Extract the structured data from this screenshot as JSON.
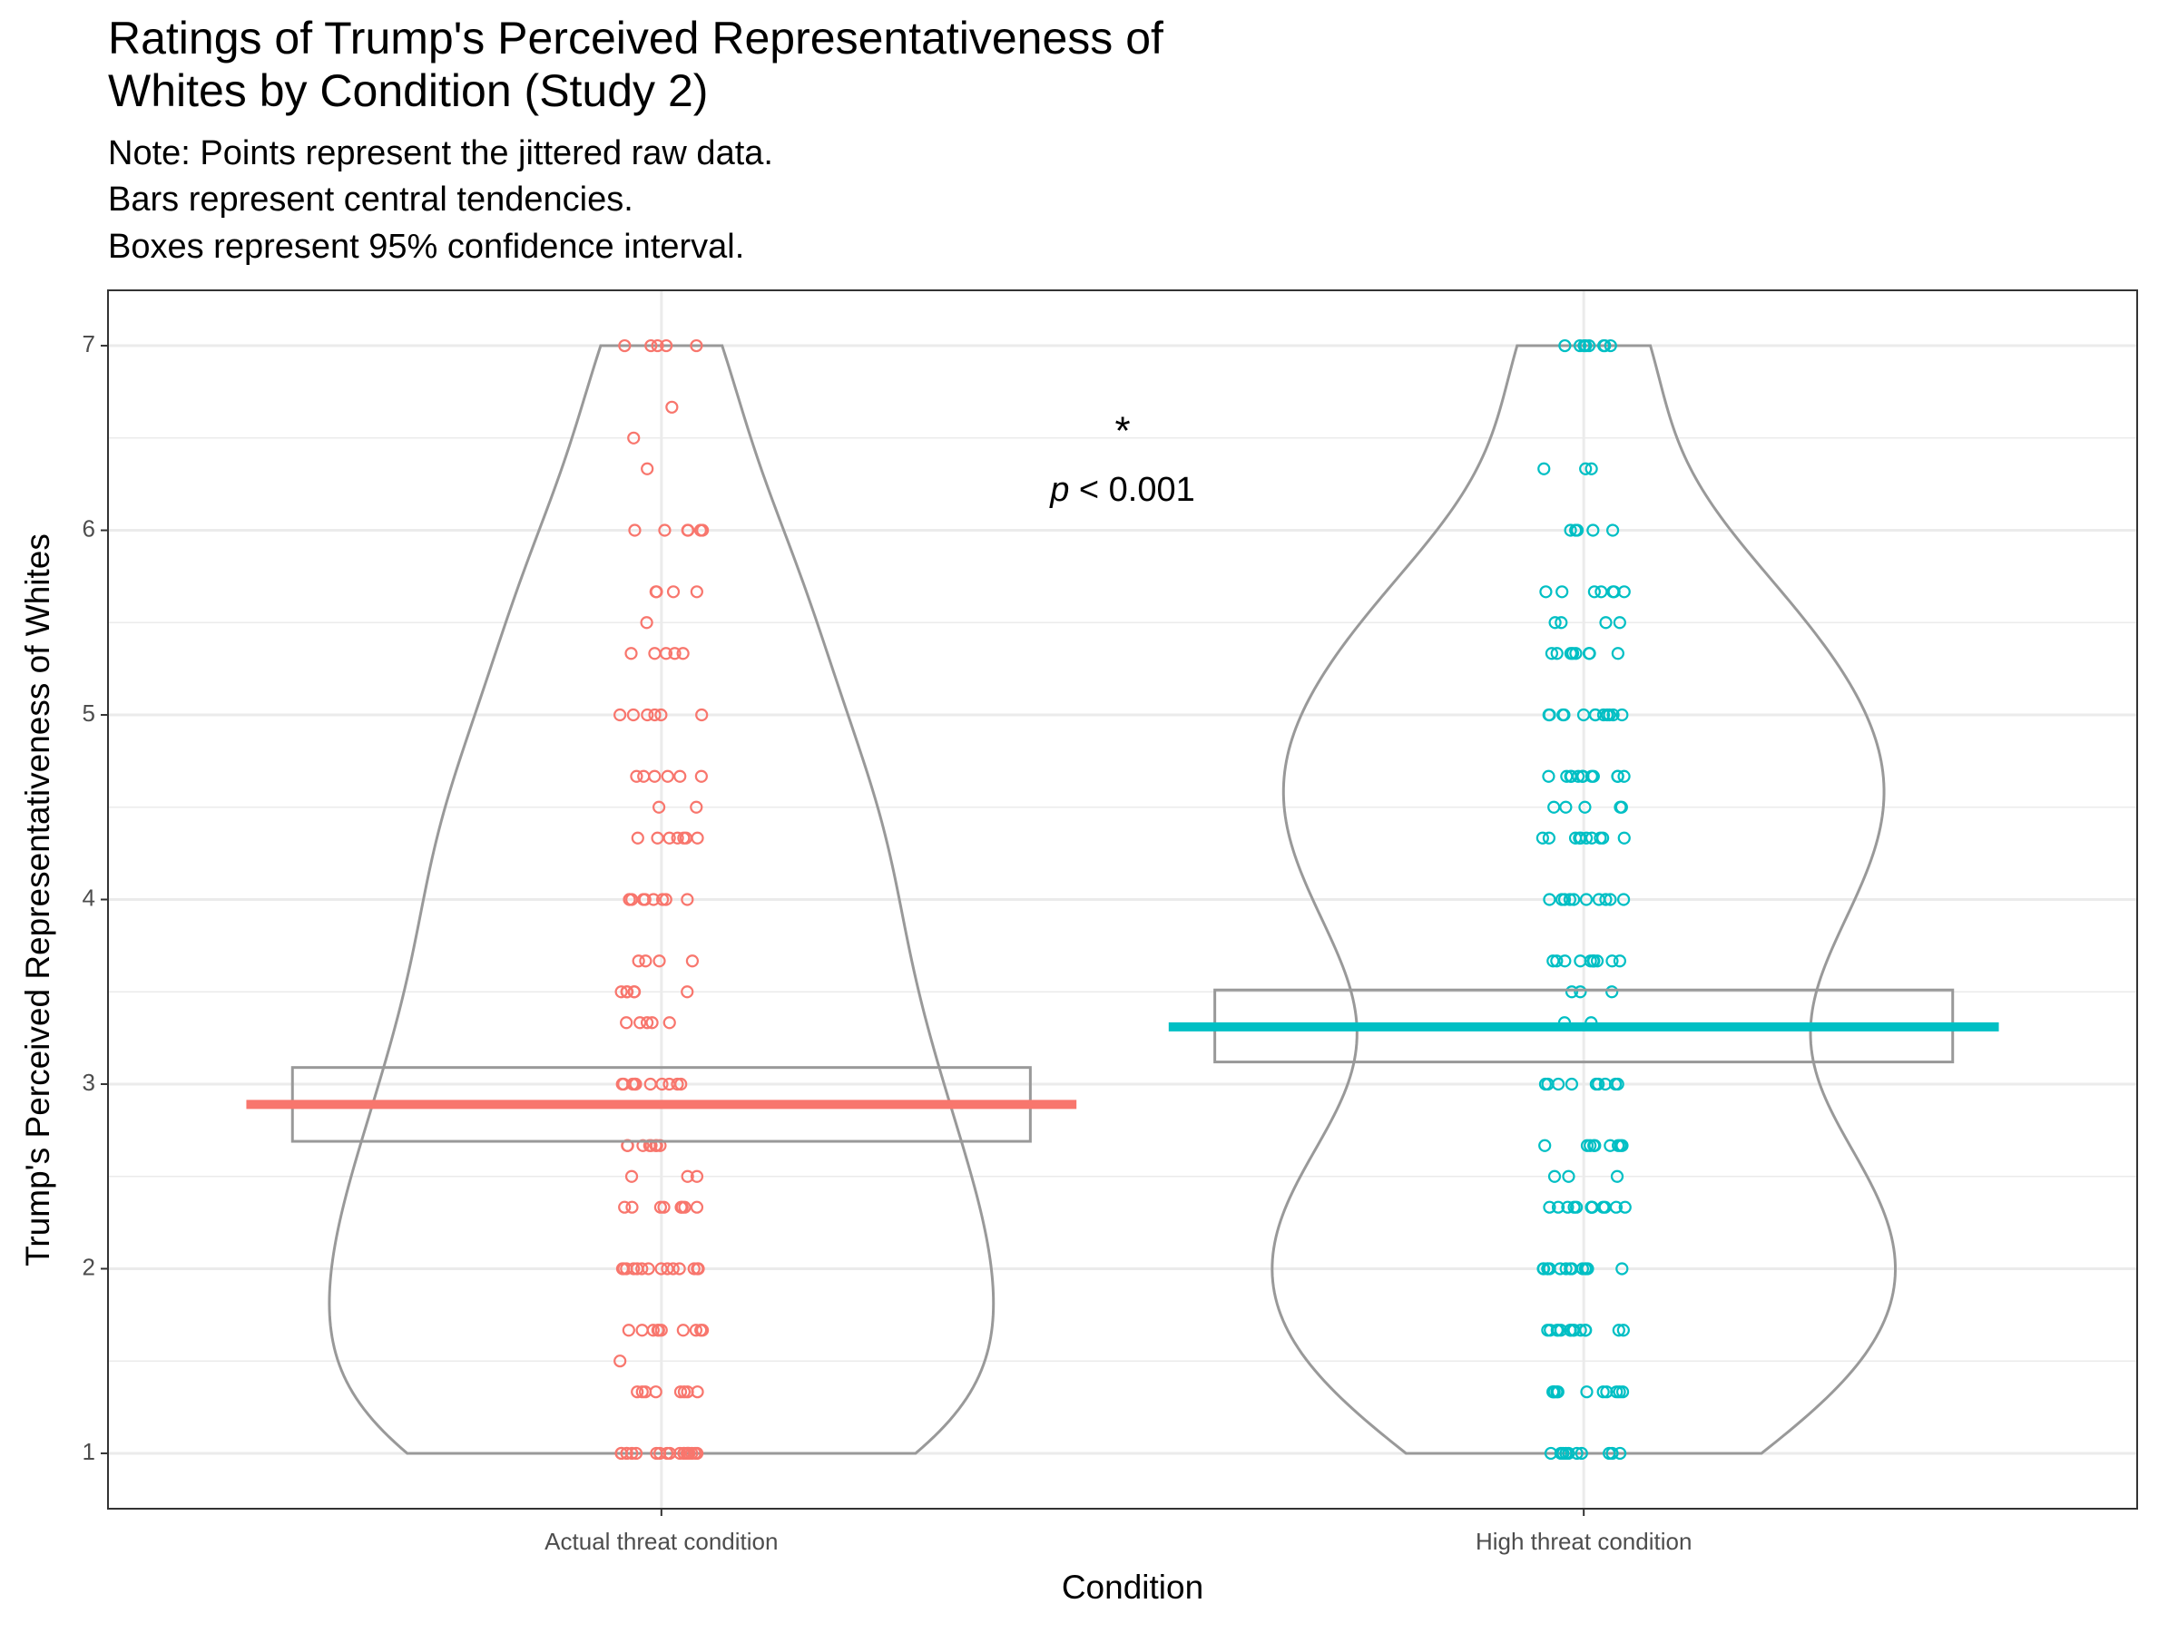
{
  "chart_data": {
    "type": "violin",
    "title": [
      "Ratings of Trump's Perceived Representativeness of",
      "Whites by Condition (Study 2)"
    ],
    "subtitle": [
      "Note: Points represent the jittered raw data.",
      "Bars represent central tendencies.",
      "Boxes represent 95% confidence interval."
    ],
    "x_label": "Condition",
    "y_label": "Trump's Perceived Representativeness of Whites",
    "annotation": {
      "star": "*",
      "p_symbol": "p",
      "p_text": "< 0.001"
    },
    "ylim": [
      0.7,
      7.3
    ],
    "yticks": [
      1,
      2,
      3,
      4,
      5,
      6,
      7
    ],
    "grid": true,
    "series": [
      {
        "name": "Actual threat condition",
        "color": "#F8766D",
        "mean": 2.89,
        "ci": [
          2.69,
          3.09
        ],
        "values": [
          7,
          7,
          7,
          7,
          7,
          6.667,
          6.5,
          6.333,
          6,
          6,
          6,
          6,
          6,
          6,
          5.667,
          5.667,
          5.667,
          5.667,
          5.5,
          5.333,
          5.333,
          5.333,
          5.333,
          5.333,
          5,
          5,
          5,
          5,
          5,
          5,
          4.667,
          4.667,
          4.667,
          4.667,
          4.667,
          4.667,
          4.5,
          4.5,
          4.333,
          4.333,
          4.333,
          4.333,
          4.333,
          4.333,
          4.333,
          4,
          4,
          4,
          4,
          4,
          4,
          4,
          4,
          4,
          3.667,
          3.667,
          3.667,
          3.667,
          3.5,
          3.5,
          3.5,
          3.5,
          3.5,
          3.5,
          3.333,
          3.333,
          3.333,
          3.333,
          3.333,
          3,
          3,
          3,
          3,
          3,
          3,
          3,
          3,
          3,
          3,
          3,
          2.667,
          2.667,
          2.667,
          2.667,
          2.667,
          2.667,
          2.667,
          2.667,
          2.5,
          2.5,
          2.5,
          2.333,
          2.333,
          2.333,
          2.333,
          2.333,
          2.333,
          2.333,
          2.333,
          2,
          2,
          2,
          2,
          2,
          2,
          2,
          2,
          2,
          2,
          2,
          2,
          2,
          2,
          1.667,
          1.667,
          1.667,
          1.667,
          1.667,
          1.667,
          1.667,
          1.667,
          1.667,
          1.667,
          1.5,
          1.333,
          1.333,
          1.333,
          1.333,
          1.333,
          1.333,
          1.333,
          1.333,
          1,
          1,
          1,
          1,
          1,
          1,
          1,
          1,
          1,
          1,
          1,
          1,
          1,
          1,
          1,
          1,
          1,
          1,
          1,
          1
        ]
      },
      {
        "name": "High threat condition",
        "color": "#00BFC4",
        "mean": 3.31,
        "ci": [
          3.12,
          3.51
        ],
        "values": [
          7,
          7,
          7,
          7,
          7,
          7,
          7,
          7,
          6.333,
          6.333,
          6.333,
          6,
          6,
          6,
          6,
          6,
          5.667,
          5.667,
          5.667,
          5.667,
          5.667,
          5.667,
          5.667,
          5.5,
          5.5,
          5.5,
          5.5,
          5.333,
          5.333,
          5.333,
          5.333,
          5.333,
          5.333,
          5.333,
          5.333,
          5,
          5,
          5,
          5,
          5,
          5,
          5,
          5,
          5,
          5,
          5,
          5,
          4.667,
          4.667,
          4.667,
          4.667,
          4.667,
          4.667,
          4.667,
          4.667,
          4.667,
          4.667,
          4.667,
          4.667,
          4.5,
          4.5,
          4.5,
          4.5,
          4.5,
          4.333,
          4.333,
          4.333,
          4.333,
          4.333,
          4.333,
          4.333,
          4.333,
          4.333,
          4.333,
          4,
          4,
          4,
          4,
          4,
          4,
          4,
          4,
          4,
          4,
          3.667,
          3.667,
          3.667,
          3.667,
          3.667,
          3.667,
          3.667,
          3.667,
          3.667,
          3.667,
          3.667,
          3.5,
          3.5,
          3.5,
          3.333,
          3.333,
          3,
          3,
          3,
          3,
          3,
          3,
          3,
          3,
          3,
          2.667,
          2.667,
          2.667,
          2.667,
          2.667,
          2.667,
          2.667,
          2.667,
          2.667,
          2.5,
          2.5,
          2.5,
          2.333,
          2.333,
          2.333,
          2.333,
          2.333,
          2.333,
          2.333,
          2.333,
          2.333,
          2.333,
          2.333,
          2.333,
          2,
          2,
          2,
          2,
          2,
          2,
          2,
          2,
          2,
          2,
          2,
          2,
          2,
          2,
          1.667,
          1.667,
          1.667,
          1.667,
          1.667,
          1.667,
          1.667,
          1.667,
          1.667,
          1.667,
          1.667,
          1.667,
          1.667,
          1.667,
          1.333,
          1.333,
          1.333,
          1.333,
          1.333,
          1.333,
          1.333,
          1.333,
          1.333,
          1.333,
          1.333,
          1,
          1,
          1,
          1,
          1,
          1,
          1,
          1,
          1,
          1
        ]
      }
    ]
  }
}
